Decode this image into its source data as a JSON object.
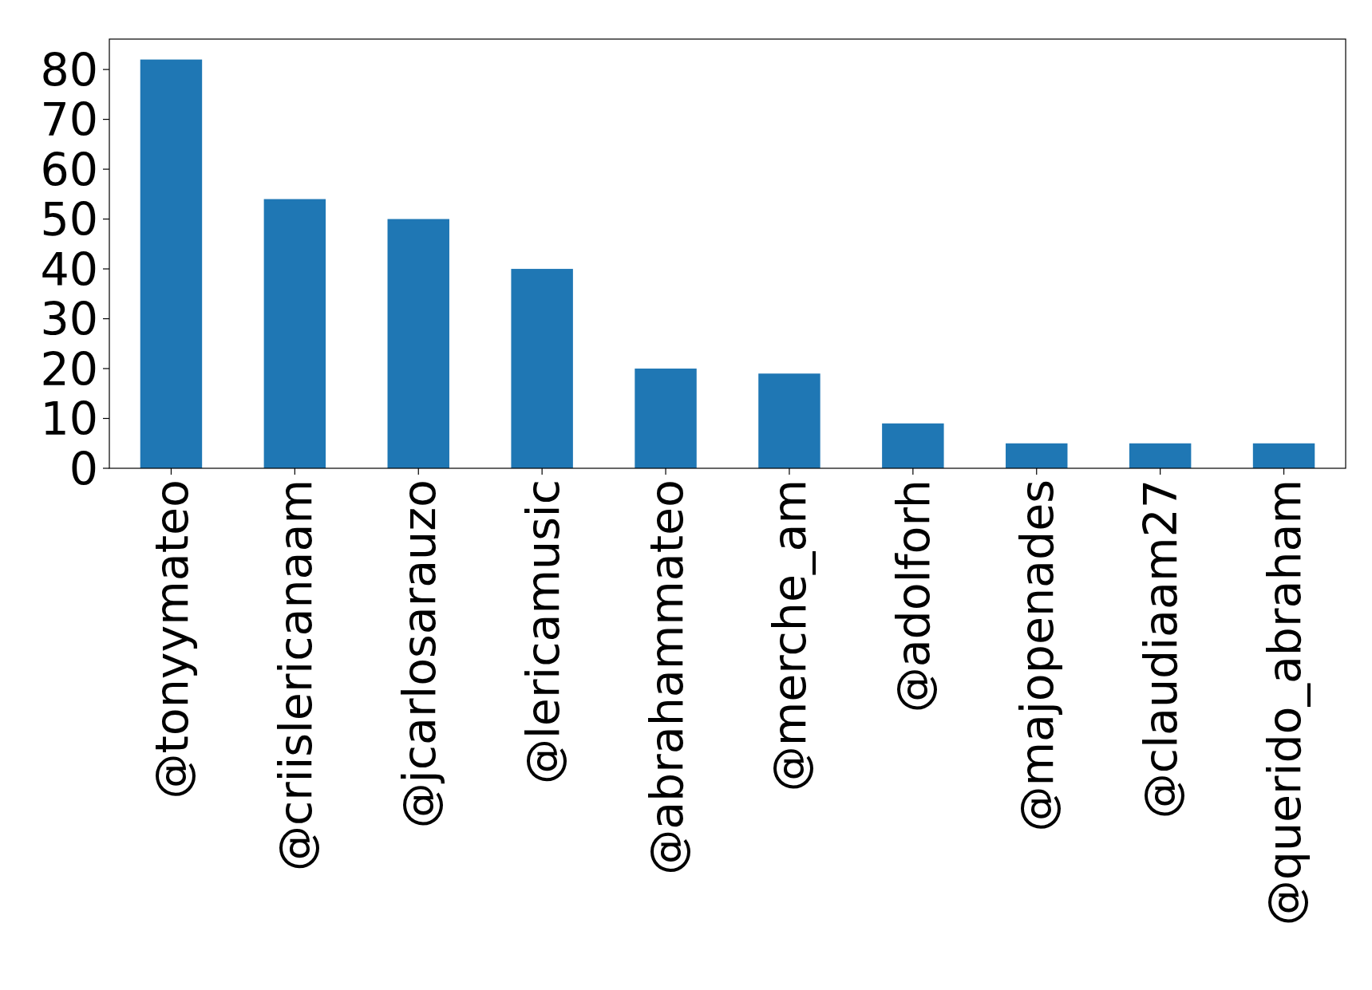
{
  "chart_data": {
    "type": "bar",
    "categories": [
      "@tonyymateo",
      "@criislericanaam",
      "@jcarlosarauzo",
      "@lericamusic",
      "@abrahammateo",
      "@merche_am",
      "@adolforh",
      "@majopenades",
      "@claudiaam27",
      "@querido_abraham"
    ],
    "values": [
      82,
      54,
      50,
      40,
      20,
      19,
      9,
      5,
      5,
      5
    ],
    "color": "#1f77b4",
    "ylim": [
      0,
      86.1
    ],
    "yticks": [
      0,
      10,
      20,
      30,
      40,
      50,
      60,
      70,
      80
    ],
    "grid": false
  }
}
